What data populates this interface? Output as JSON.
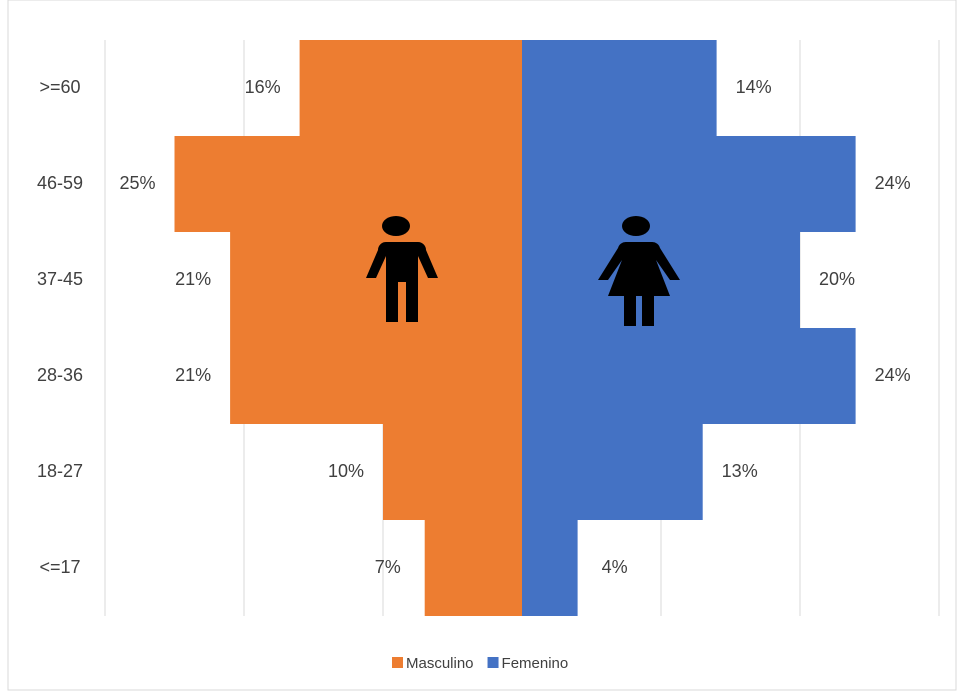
{
  "chart_data": {
    "type": "population-pyramid",
    "categories": [
      ">=60",
      "46-59",
      "37-45",
      "28-36",
      "18-27",
      "<=17"
    ],
    "series": [
      {
        "name": "Masculino",
        "color": "#ed7d31",
        "side": "left",
        "values": [
          16,
          25,
          21,
          21,
          10,
          7
        ],
        "value_labels": [
          "16%",
          "25%",
          "21%",
          "21%",
          "10%",
          "7%"
        ]
      },
      {
        "name": "Femenino",
        "color": "#4472c4",
        "side": "right",
        "values": [
          14,
          24,
          20,
          24,
          13,
          4
        ],
        "value_labels": [
          "14%",
          "24%",
          "20%",
          "24%",
          "13%",
          "4%"
        ]
      }
    ],
    "xlim": [
      -30,
      30
    ],
    "xticks": [
      -30,
      -20,
      -10,
      0,
      10,
      20,
      30
    ],
    "grid": true,
    "legend": "bottom"
  }
}
